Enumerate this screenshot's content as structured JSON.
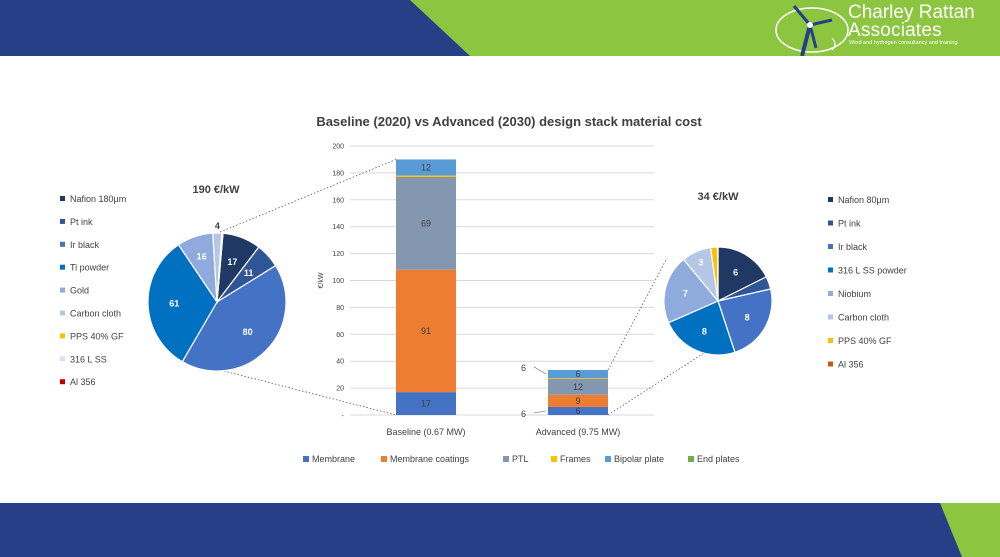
{
  "header": {
    "brand": {
      "name_line1": "Charley Rattan",
      "name_line2": "Associates",
      "tagline": "Wind and hydrogen consultancy and training"
    },
    "colors": {
      "navy": "#263f86",
      "green": "#8cc53f"
    }
  },
  "chart_data": [
    {
      "type": "bar",
      "stacked": true,
      "title": "Baseline (2020) vs Advanced (2030) design stack material cost",
      "ylabel": "€/kW",
      "ylim": [
        0,
        200
      ],
      "yticks": [
        20,
        40,
        60,
        80,
        100,
        120,
        140,
        160,
        180,
        200
      ],
      "grid": true,
      "legend_position": "bottom",
      "categories": [
        "Baseline (0.67 MW)",
        "Advanced (9.75 MW)"
      ],
      "series": [
        {
          "name": "Membrane",
          "color": "#4472c4",
          "values": [
            17,
            6
          ]
        },
        {
          "name": "Membrane coatings",
          "color": "#ed7d31",
          "values": [
            91,
            9
          ]
        },
        {
          "name": "PTL",
          "color": "#8497b0",
          "values": [
            69,
            12
          ]
        },
        {
          "name": "Frames",
          "color": "#ffc000",
          "values": [
            1,
            0.5
          ]
        },
        {
          "name": "Bipolar plate",
          "color": "#5b9bd5",
          "values": [
            12,
            6
          ]
        },
        {
          "name": "End plates",
          "color": "#70ad47",
          "values": [
            0,
            0
          ]
        }
      ],
      "data_labels": [
        [
          "17",
          "91",
          "69",
          "",
          "12"
        ],
        [
          "6",
          "9",
          "12",
          "",
          "6"
        ]
      ]
    },
    {
      "type": "pie",
      "title": "190 €/kW",
      "labels": [
        "Nafion 180µm",
        "Pt ink",
        "Ir black",
        "Ti powder",
        "Gold",
        "Carbon cloth",
        "PPS 40% GF",
        "316 L SS",
        "Al 356"
      ],
      "values": [
        17,
        11,
        80,
        61,
        16,
        4,
        0.2,
        0.2,
        0.1
      ],
      "data_labels": [
        "17",
        "11",
        "80",
        "61",
        "16",
        "4",
        "",
        "",
        ""
      ],
      "colors": [
        "#1f3864",
        "#2f5597",
        "#4472c4",
        "#0070c0",
        "#8faadc",
        "#b4c7e7",
        "#ffc000",
        "#dae3f3",
        "#c00000"
      ],
      "legend_position": "left"
    },
    {
      "type": "pie",
      "title": "34 €/kW",
      "labels": [
        "Nafion 80µm",
        "Pt ink",
        "Ir black",
        "316 L SS powder",
        "Niobium",
        "Carbon cloth",
        "PPS 40% GF",
        "Al 356"
      ],
      "values": [
        6,
        1.3,
        8,
        8,
        7,
        3,
        0.7,
        0.05
      ],
      "data_labels": [
        "6",
        "",
        "8",
        "8",
        "7",
        "3",
        "",
        ""
      ],
      "colors": [
        "#1f3864",
        "#2f5597",
        "#4472c4",
        "#0070c0",
        "#8faadc",
        "#b4c7e7",
        "#ffc000",
        "#c55a11"
      ],
      "legend_position": "right"
    }
  ]
}
